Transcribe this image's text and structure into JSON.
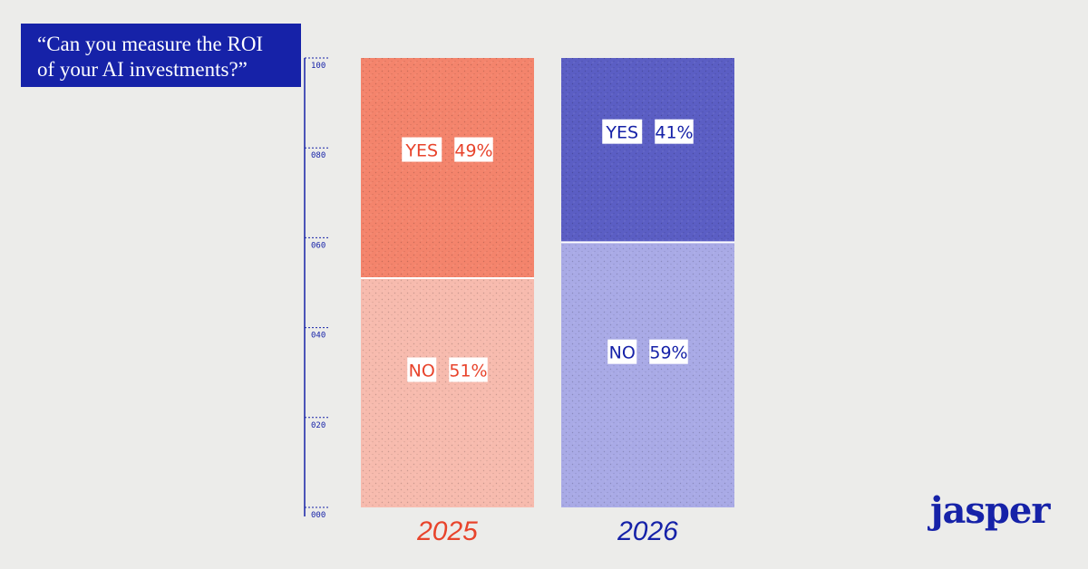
{
  "title": {
    "line1": "“Can you measure the ROI",
    "line2": "of your AI investments?”"
  },
  "logo": "jasper",
  "chart_data": {
    "type": "bar",
    "stacked": true,
    "categories": [
      "2025",
      "2026"
    ],
    "ylim": [
      0,
      100
    ],
    "y_ticks": [
      "000",
      "020",
      "040",
      "060",
      "080",
      "100"
    ],
    "series": [
      {
        "name": "NO",
        "values": [
          51,
          59
        ]
      },
      {
        "name": "YES",
        "values": [
          49,
          41
        ]
      }
    ],
    "data_labels": [
      {
        "category": "2025",
        "label": "YES",
        "value": "49%"
      },
      {
        "category": "2025",
        "label": "NO",
        "value": "51%"
      },
      {
        "category": "2026",
        "label": "YES",
        "value": "41%"
      },
      {
        "category": "2026",
        "label": "NO",
        "value": "59%"
      }
    ],
    "colors": {
      "2025": {
        "YES": "#f4846c",
        "NO": "#f7bbae",
        "text": "#e8442c"
      },
      "2026": {
        "YES": "#5b5ec4",
        "NO": "#a9aae6",
        "text": "#1622a8"
      },
      "axis": "#1622a8"
    }
  }
}
